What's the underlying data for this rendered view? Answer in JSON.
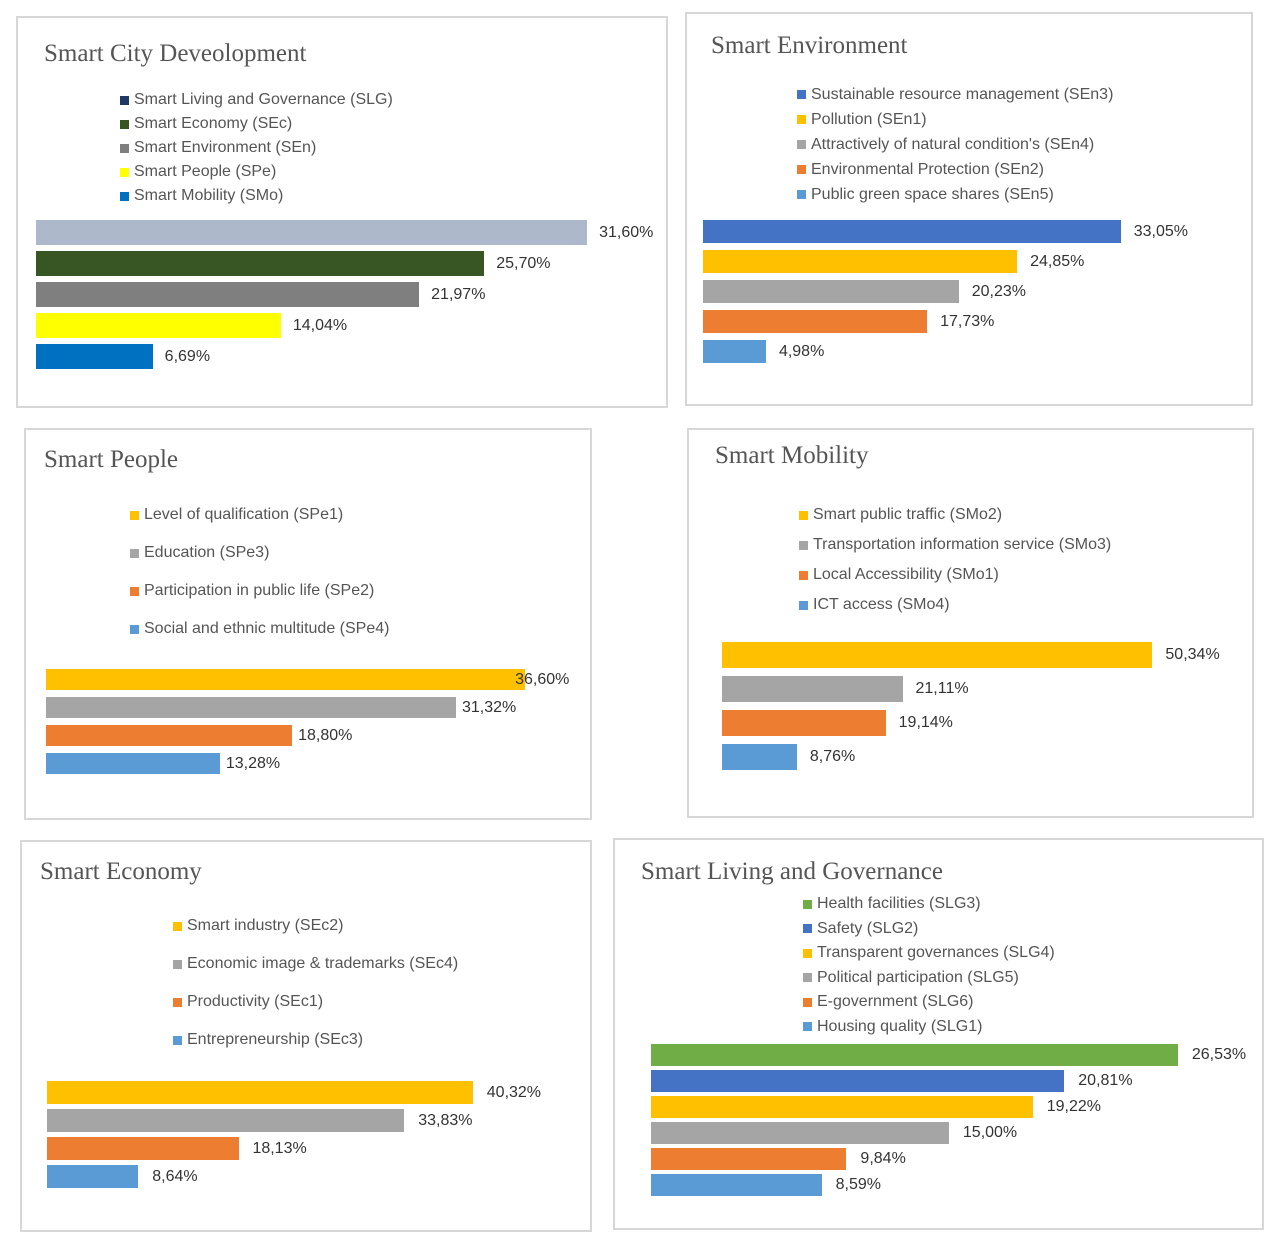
{
  "chart_data": [
    {
      "type": "bar",
      "orientation": "horizontal",
      "title": "Smart City Deveolopment",
      "legend": [
        "Smart Living and Governance (SLG)",
        "Smart Economy (SEc)",
        "Smart Environment (SEn)",
        "Smart People (SPe)",
        "Smart Mobility (SMo)"
      ],
      "legend_colors": [
        "#1f3864",
        "#375623",
        "#7f7f7f",
        "#ffff00",
        "#0070c0"
      ],
      "values": [
        31.6,
        25.7,
        21.97,
        14.04,
        6.69
      ],
      "labels": [
        "31,60%",
        "25,70%",
        "21,97%",
        "14,04%",
        "6,69%"
      ],
      "bar_colors": [
        "#adb9ca",
        "#375623",
        "#7f7f7f",
        "#ffff00",
        "#0070c0"
      ],
      "xlim": [
        0,
        100
      ]
    },
    {
      "type": "bar",
      "orientation": "horizontal",
      "title": "Smart Environment",
      "legend": [
        "Sustainable resource management (SEn3)",
        "Pollution (SEn1)",
        "Attractively of natural condition's (SEn4)",
        "Environmental Protection (SEn2)",
        "Public green space shares (SEn5)"
      ],
      "legend_colors": [
        "#4472c4",
        "#ffc000",
        "#a5a5a5",
        "#ed7d31",
        "#5b9bd5"
      ],
      "values": [
        33.05,
        24.85,
        20.23,
        17.73,
        4.98
      ],
      "labels": [
        "33,05%",
        "24,85%",
        "20,23%",
        "17,73%",
        "4,98%"
      ],
      "bar_colors": [
        "#4472c4",
        "#ffc000",
        "#a5a5a5",
        "#ed7d31",
        "#5b9bd5"
      ],
      "xlim": [
        0,
        100
      ]
    },
    {
      "type": "bar",
      "orientation": "horizontal",
      "title": "Smart People",
      "legend": [
        "Level of qualification (SPe1)",
        "Education (SPe3)",
        "Participation in public life (SPe2)",
        "Social and ethnic multitude (SPe4)"
      ],
      "legend_colors": [
        "#ffc000",
        "#a5a5a5",
        "#ed7d31",
        "#5b9bd5"
      ],
      "values": [
        36.6,
        31.32,
        18.8,
        13.28
      ],
      "labels": [
        "36,60%",
        "31,32%",
        "18,80%",
        "13,28%"
      ],
      "bar_colors": [
        "#ffc000",
        "#a5a5a5",
        "#ed7d31",
        "#5b9bd5"
      ],
      "xlim": [
        0,
        100
      ]
    },
    {
      "type": "bar",
      "orientation": "horizontal",
      "title": "Smart Mobility",
      "legend": [
        "Smart public traffic (SMo2)",
        "Transportation information service (SMo3)",
        "Local Accessibility (SMo1)",
        "ICT access (SMo4)"
      ],
      "legend_colors": [
        "#ffc000",
        "#a5a5a5",
        "#ed7d31",
        "#5b9bd5"
      ],
      "values": [
        50.34,
        21.11,
        19.14,
        8.76
      ],
      "labels": [
        "50,34%",
        "21,11%",
        "19,14%",
        "8,76%"
      ],
      "bar_colors": [
        "#ffc000",
        "#a5a5a5",
        "#ed7d31",
        "#5b9bd5"
      ],
      "xlim": [
        0,
        100
      ]
    },
    {
      "type": "bar",
      "orientation": "horizontal",
      "title": "Smart Economy",
      "legend": [
        "Smart industry (SEc2)",
        "Economic image & trademarks  (SEc4)",
        "Productivity (SEc1)",
        "Entrepreneurship  (SEc3)"
      ],
      "legend_colors": [
        "#ffc000",
        "#a5a5a5",
        "#ed7d31",
        "#5b9bd5"
      ],
      "values": [
        40.32,
        33.83,
        18.13,
        8.64
      ],
      "labels": [
        "40,32%",
        "33,83%",
        "18,13%",
        "8,64%"
      ],
      "bar_colors": [
        "#ffc000",
        "#a5a5a5",
        "#ed7d31",
        "#5b9bd5"
      ],
      "xlim": [
        0,
        100
      ]
    },
    {
      "type": "bar",
      "orientation": "horizontal",
      "title": "Smart Living and Governance",
      "legend": [
        "Health facilities (SLG3)",
        "Safety (SLG2)",
        "Transparent governances (SLG4)",
        "Political participation (SLG5)",
        "E-government (SLG6)",
        "Housing quality (SLG1)"
      ],
      "legend_colors": [
        "#70ad47",
        "#4472c4",
        "#ffc000",
        "#a5a5a5",
        "#ed7d31",
        "#5b9bd5"
      ],
      "values": [
        26.53,
        20.81,
        19.22,
        15.0,
        9.84,
        8.59
      ],
      "labels": [
        "26,53%",
        "20,81%",
        "19,22%",
        "15,00%",
        "9,84%",
        "8,59%"
      ],
      "bar_colors": [
        "#70ad47",
        "#4472c4",
        "#ffc000",
        "#a5a5a5",
        "#ed7d31",
        "#5b9bd5"
      ],
      "xlim": [
        0,
        100
      ]
    }
  ]
}
